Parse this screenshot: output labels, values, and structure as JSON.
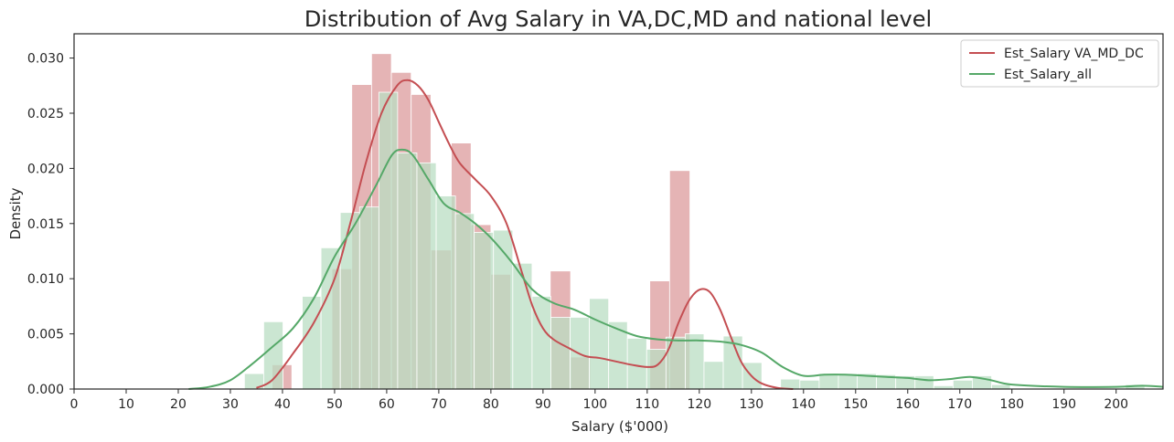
{
  "chart_data": {
    "type": "bar",
    "subtype": "histogram-with-kde",
    "title": "Distribution of Avg Salary in VA,DC,MD and national level",
    "xlabel": "Salary ($'000)",
    "ylabel": "Density",
    "xlim": [
      0,
      209
    ],
    "ylim": [
      0,
      0.0322
    ],
    "x_ticks": [
      0,
      10,
      20,
      30,
      40,
      50,
      60,
      70,
      80,
      90,
      100,
      110,
      120,
      130,
      140,
      150,
      160,
      170,
      180,
      190,
      200
    ],
    "y_ticks": [
      0.0,
      0.005,
      0.01,
      0.015,
      0.02,
      0.025,
      0.03
    ],
    "y_tick_labels": [
      "0.000",
      "0.005",
      "0.010",
      "0.015",
      "0.020",
      "0.025",
      "0.030"
    ],
    "grid": false,
    "legend_position": "top-right",
    "series": [
      {
        "name": "Est_Salary VA_MD_DC",
        "color": "#c44e52",
        "hist_color": "#e5b4b5",
        "hist_edges": [
          34.2,
          38.0,
          41.8,
          45.6,
          49.5,
          53.3,
          57.1,
          60.9,
          64.7,
          68.5,
          72.4,
          76.2,
          80.0,
          83.8,
          87.6,
          91.4,
          95.3,
          99.1,
          102.9,
          106.7,
          110.5,
          114.3,
          118.2,
          122.0
        ],
        "hist_values": [
          0.0,
          0.0022,
          0.0,
          0.0,
          0.0109,
          0.0276,
          0.0304,
          0.0287,
          0.0267,
          0.0126,
          0.0223,
          0.0149,
          0.0104,
          0.0,
          0.0,
          0.0107,
          0.0029,
          0.0,
          0.0,
          0.0,
          0.0098,
          0.0198,
          0.0
        ],
        "kde_x": [
          35,
          38,
          42,
          46,
          50,
          53,
          56,
          59,
          62,
          64,
          66,
          68,
          70,
          72,
          74,
          77,
          80,
          83,
          86,
          88,
          90,
          92,
          95,
          98,
          101,
          104,
          107,
          110,
          112,
          114,
          116,
          118,
          120,
          122,
          124,
          126,
          128,
          130,
          132,
          135,
          138
        ],
        "kde_y": [
          0.0001,
          0.0008,
          0.0032,
          0.006,
          0.01,
          0.015,
          0.0205,
          0.025,
          0.0275,
          0.028,
          0.0275,
          0.0262,
          0.0242,
          0.0222,
          0.0205,
          0.019,
          0.0175,
          0.015,
          0.0105,
          0.0075,
          0.0055,
          0.0045,
          0.0037,
          0.003,
          0.0028,
          0.0025,
          0.0022,
          0.002,
          0.0022,
          0.0035,
          0.006,
          0.008,
          0.009,
          0.0088,
          0.0072,
          0.0048,
          0.0025,
          0.0012,
          0.0005,
          0.0001,
          0.0
        ]
      },
      {
        "name": "Est_Salary_all",
        "color": "#55a868",
        "hist_color": "#b9ddc3",
        "hist_edges": [
          32.7,
          36.4,
          40.1,
          43.8,
          47.4,
          51.1,
          54.8,
          58.5,
          62.1,
          65.8,
          69.5,
          73.2,
          76.8,
          80.5,
          84.2,
          87.9,
          91.5,
          95.2,
          98.9,
          102.6,
          106.2,
          109.9,
          113.6,
          117.3,
          120.9,
          124.6,
          128.3,
          132.0,
          135.6,
          139.3,
          143.0,
          146.7,
          150.3,
          154.0,
          157.7,
          161.4,
          165.0,
          168.7,
          172.4,
          176.1,
          179.7,
          183.4,
          187.1,
          190.8,
          194.4,
          198.1,
          201.8,
          205.5
        ],
        "hist_values": [
          0.0014,
          0.0061,
          0.0,
          0.0084,
          0.0128,
          0.016,
          0.0165,
          0.0269,
          0.0214,
          0.0205,
          0.0175,
          0.0159,
          0.0142,
          0.0144,
          0.0114,
          0.0084,
          0.0065,
          0.0065,
          0.0082,
          0.0061,
          0.0046,
          0.0036,
          0.0047,
          0.005,
          0.0025,
          0.0048,
          0.0024,
          0.0,
          0.0009,
          0.0008,
          0.0014,
          0.0014,
          0.0014,
          0.0013,
          0.0012,
          0.0012,
          0.0003,
          0.0008,
          0.0012,
          0.0004,
          0.0,
          0.0,
          0.0,
          0.0,
          0.0,
          0.0,
          0.0004
        ],
        "kde_x": [
          22,
          26,
          30,
          34,
          38,
          42,
          46,
          50,
          54,
          58,
          61,
          63,
          65,
          68,
          71,
          74,
          77,
          80,
          84,
          88,
          92,
          96,
          100,
          104,
          108,
          112,
          116,
          120,
          124,
          128,
          132,
          136,
          140,
          144,
          148,
          152,
          156,
          160,
          164,
          168,
          172,
          176,
          180,
          190,
          200,
          205,
          209
        ],
        "kde_y": [
          0.0,
          0.0002,
          0.0008,
          0.0022,
          0.0038,
          0.0055,
          0.0082,
          0.012,
          0.015,
          0.0185,
          0.0212,
          0.0217,
          0.0212,
          0.019,
          0.0168,
          0.016,
          0.015,
          0.0137,
          0.0115,
          0.009,
          0.0078,
          0.0072,
          0.0063,
          0.0055,
          0.0048,
          0.0045,
          0.0044,
          0.0044,
          0.0043,
          0.004,
          0.0033,
          0.002,
          0.0012,
          0.0013,
          0.0013,
          0.0012,
          0.0011,
          0.001,
          0.0008,
          0.0009,
          0.0011,
          0.0008,
          0.0004,
          0.0002,
          0.0002,
          0.0003,
          0.0002
        ]
      }
    ]
  }
}
